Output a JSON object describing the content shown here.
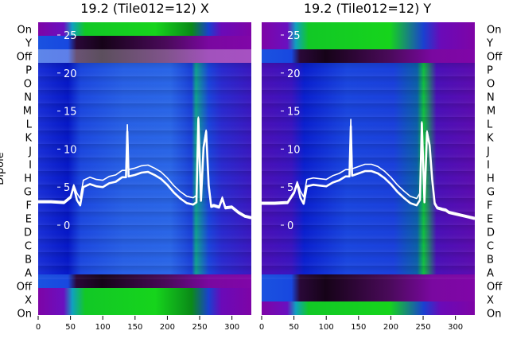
{
  "chart_data": [
    {
      "type": "heatmap",
      "title": "19.2 (Tile012=12) X",
      "ylabel": "Dipole",
      "row_labels": [
        "On",
        "Y",
        "Off",
        "P",
        "O",
        "N",
        "M",
        "L",
        "K",
        "J",
        "I",
        "H",
        "G",
        "F",
        "E",
        "D",
        "C",
        "B",
        "A",
        "Off",
        "X",
        "On"
      ],
      "x_ticks": [
        0,
        50,
        100,
        150,
        200,
        250,
        300
      ],
      "xlim": [
        0,
        330
      ],
      "overlay_y_ticks": [
        25,
        20,
        15,
        10,
        5,
        0
      ],
      "overlay_ylim": [
        -2,
        27
      ],
      "overlay_series": [
        {
          "x": [
            0,
            20,
            40,
            50,
            55,
            60,
            65,
            70,
            80,
            90,
            100,
            110,
            120,
            130,
            136,
            138,
            140,
            150,
            160,
            170,
            180,
            190,
            200,
            210,
            220,
            230,
            240,
            245,
            248,
            252,
            256,
            260,
            264,
            268,
            272,
            280,
            285,
            290,
            300,
            310,
            320,
            330
          ],
          "y": [
            3.0,
            3.0,
            2.9,
            3.6,
            5.1,
            3.3,
            2.6,
            5.0,
            5.4,
            5.1,
            5.0,
            5.5,
            5.7,
            6.3,
            6.3,
            12.3,
            6.4,
            6.6,
            6.9,
            7.0,
            6.6,
            6.1,
            5.3,
            4.3,
            3.5,
            2.9,
            2.7,
            3.0,
            14.0,
            3.2,
            10.2,
            12.3,
            5.2,
            2.4,
            2.5,
            2.3,
            3.5,
            2.2,
            2.3,
            1.6,
            1.1,
            0.9
          ]
        }
      ]
    },
    {
      "type": "heatmap",
      "title": "19.2 (Tile012=12) Y",
      "ylabel": "",
      "row_labels": [
        "On",
        "Y",
        "Off",
        "P",
        "O",
        "N",
        "M",
        "L",
        "K",
        "J",
        "I",
        "H",
        "G",
        "F",
        "E",
        "D",
        "C",
        "B",
        "A",
        "Off",
        "X",
        "On"
      ],
      "x_ticks": [
        0,
        50,
        100,
        150,
        200,
        250,
        300
      ],
      "xlim": [
        0,
        330
      ],
      "overlay_y_ticks": [
        25,
        20,
        15,
        10,
        5,
        0
      ],
      "overlay_ylim": [
        -2,
        27
      ],
      "overlay_series": [
        {
          "x": [
            0,
            20,
            40,
            50,
            55,
            60,
            65,
            70,
            80,
            90,
            100,
            110,
            120,
            130,
            136,
            138,
            140,
            150,
            160,
            170,
            180,
            190,
            200,
            210,
            220,
            230,
            240,
            245,
            248,
            252,
            256,
            260,
            264,
            268,
            272,
            280,
            285,
            290,
            300,
            310,
            320,
            330
          ],
          "y": [
            2.8,
            2.8,
            2.9,
            4.2,
            5.5,
            3.6,
            2.8,
            5.1,
            5.3,
            5.2,
            5.1,
            5.6,
            5.9,
            6.4,
            6.4,
            13.0,
            6.5,
            6.8,
            7.1,
            7.1,
            6.8,
            6.2,
            5.4,
            4.4,
            3.6,
            2.9,
            2.6,
            3.3,
            13.4,
            3.0,
            12.2,
            10.5,
            6.0,
            2.8,
            2.2,
            2.0,
            1.9,
            1.6,
            1.4,
            1.2,
            1.0,
            0.8
          ]
        }
      ]
    }
  ],
  "colors": {
    "violet": "#7e04a6",
    "blue": "#0524d8",
    "mid_blue": "#1a52e0",
    "dark": "#1a0320",
    "green": "#10d820",
    "overlay": "#ffffff"
  }
}
